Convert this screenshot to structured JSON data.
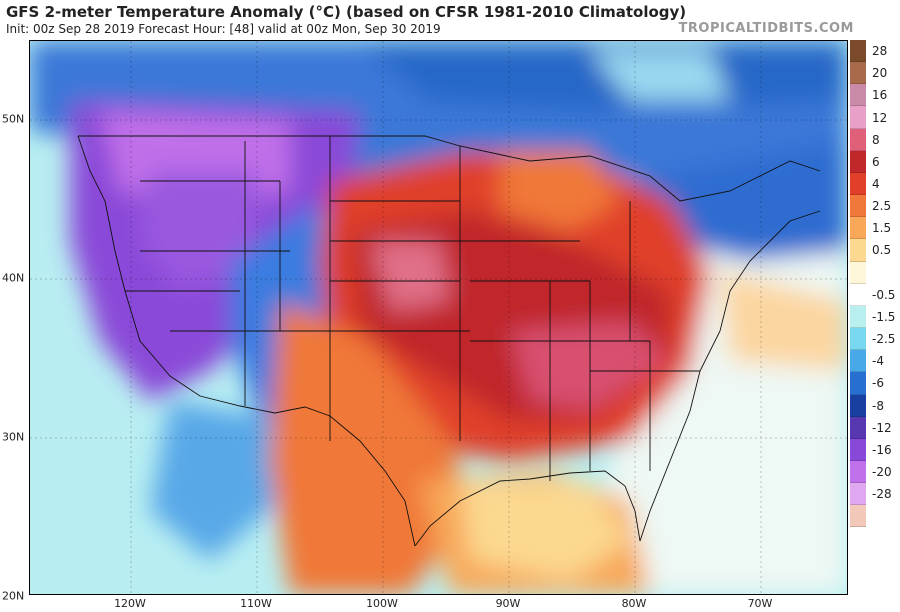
{
  "header": {
    "title": "GFS 2-meter Temperature Anomaly (°C) (based on CFSR 1981-2010 Climatology)",
    "subtitle": "Init: 00z Sep 28 2019   Forecast Hour: [48]   valid at 00z Mon, Sep 30 2019",
    "brand": "TROPICALTIDBITS.COM"
  },
  "map": {
    "lat_labels": [
      {
        "label": "50N",
        "lat": 50
      },
      {
        "label": "40N",
        "lat": 40
      },
      {
        "label": "30N",
        "lat": 30
      },
      {
        "label": "20N",
        "lat": 20
      }
    ],
    "lon_labels": [
      {
        "label": "120W",
        "lon": -120
      },
      {
        "label": "110W",
        "lon": -110
      },
      {
        "label": "100W",
        "lon": -100
      },
      {
        "label": "90W",
        "lon": -90
      },
      {
        "label": "80W",
        "lon": -80
      },
      {
        "label": "70W",
        "lon": -70
      }
    ]
  },
  "legend": {
    "entries": [
      {
        "label": "28",
        "color": "#7a4a2a"
      },
      {
        "label": "20",
        "color": "#a86a4a"
      },
      {
        "label": "16",
        "color": "#c98aa8"
      },
      {
        "label": "12",
        "color": "#e8a0c8"
      },
      {
        "label": "8",
        "color": "#e0607a"
      },
      {
        "label": "6",
        "color": "#c0282a"
      },
      {
        "label": "4",
        "color": "#e0402a"
      },
      {
        "label": "2.5",
        "color": "#f0783a"
      },
      {
        "label": "1.5",
        "color": "#f8a858"
      },
      {
        "label": "0.5",
        "color": "#fcd890"
      },
      {
        "label": "",
        "color": "#fdf6d8"
      },
      {
        "label": "-0.5",
        "color": "#ffffff"
      },
      {
        "label": "-1.5",
        "color": "#b8f0f0"
      },
      {
        "label": "-2.5",
        "color": "#78d8f0"
      },
      {
        "label": "-4",
        "color": "#48a8e8"
      },
      {
        "label": "-6",
        "color": "#2870d0"
      },
      {
        "label": "-8",
        "color": "#1840a0"
      },
      {
        "label": "-12",
        "color": "#5838b0"
      },
      {
        "label": "-16",
        "color": "#8848d8"
      },
      {
        "label": "-20",
        "color": "#c070e8"
      },
      {
        "label": "-28",
        "color": "#e0a8f0"
      },
      {
        "label": "",
        "color": "#f2c8b8"
      }
    ]
  }
}
